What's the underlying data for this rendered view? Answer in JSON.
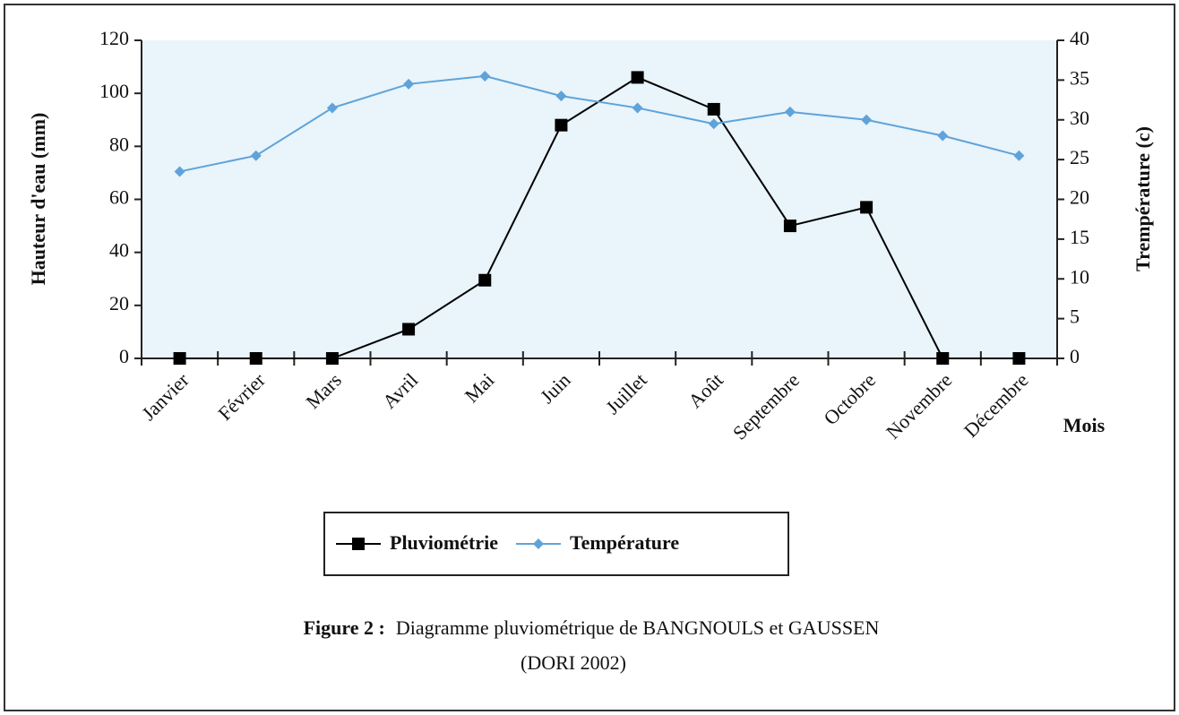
{
  "chart_data": {
    "type": "line",
    "ylabel": "Hauteur d'eau (mm)",
    "y2label": "Trempérature (c)",
    "xlabel": "Mois",
    "categories": [
      "Janvier",
      "Février",
      "Mars",
      "Avril",
      "Mai",
      "Juin",
      "Juillet",
      "Août",
      "Septembre",
      "Octobre",
      "Novembre",
      "Décembre"
    ],
    "series": [
      {
        "name": "Pluviométrie",
        "color": "#000000",
        "marker": "square",
        "values": [
          0,
          0,
          0,
          11,
          29.5,
          88,
          106,
          94,
          50,
          57,
          0,
          0
        ]
      },
      {
        "name": "Température",
        "color": "#5fa3d9",
        "marker": "diamond",
        "axis": "y2",
        "values": [
          23.5,
          25.5,
          31.5,
          34.5,
          35.5,
          33,
          31.5,
          29.5,
          31,
          30,
          28,
          25.5
        ]
      }
    ],
    "ylim": [
      0,
      120
    ],
    "yticks": [
      0,
      20,
      40,
      60,
      80,
      100,
      120
    ],
    "y2lim": [
      0,
      40
    ],
    "y2ticks": [
      0,
      5,
      10,
      15,
      20,
      25,
      30,
      35,
      40
    ],
    "legend": "bottom"
  },
  "caption": {
    "label": "Figure 2 :",
    "lines": [
      "Diagramme pluviométrique de BANGNOULS et GAUSSEN",
      "(DORI 2002)"
    ]
  }
}
